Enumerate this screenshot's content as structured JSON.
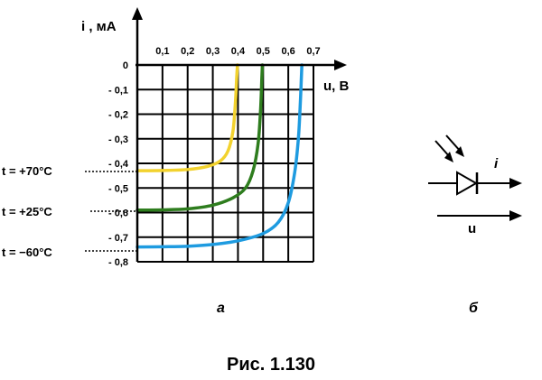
{
  "chart_data": {
    "type": "line",
    "y_axis_label": "i , мА",
    "x_axis_label": "u, В",
    "x_ticks": [
      "0,1",
      "0,2",
      "0,3",
      "0,4",
      "0,5",
      "0,6",
      "0,7"
    ],
    "y_ticks": [
      "0",
      "- 0,1",
      "- 0,2",
      "- 0,3",
      "- 0,4",
      "- 0,5",
      "- 0,6",
      "- 0,7",
      "- 0,8"
    ],
    "xlim": [
      0,
      0.7
    ],
    "ylim": [
      -0.8,
      0
    ],
    "grid": true,
    "series": [
      {
        "label": "t = +70°C",
        "color": "#f2d22e",
        "points": [
          [
            0,
            -0.43
          ],
          [
            0.1,
            -0.429
          ],
          [
            0.2,
            -0.425
          ],
          [
            0.28,
            -0.412
          ],
          [
            0.33,
            -0.39
          ],
          [
            0.36,
            -0.35
          ],
          [
            0.38,
            -0.27
          ],
          [
            0.39,
            -0.15
          ],
          [
            0.395,
            -0.05
          ],
          [
            0.398,
            0
          ]
        ]
      },
      {
        "label": "t = +25°C",
        "color": "#2e7d1e",
        "points": [
          [
            0,
            -0.59
          ],
          [
            0.1,
            -0.589
          ],
          [
            0.2,
            -0.585
          ],
          [
            0.3,
            -0.57
          ],
          [
            0.38,
            -0.54
          ],
          [
            0.43,
            -0.5
          ],
          [
            0.46,
            -0.43
          ],
          [
            0.48,
            -0.32
          ],
          [
            0.49,
            -0.18
          ],
          [
            0.495,
            -0.05
          ],
          [
            0.497,
            0
          ]
        ]
      },
      {
        "label": "t = -60°C",
        "color": "#1e9be0",
        "points": [
          [
            0,
            -0.74
          ],
          [
            0.1,
            -0.739
          ],
          [
            0.2,
            -0.737
          ],
          [
            0.3,
            -0.73
          ],
          [
            0.4,
            -0.715
          ],
          [
            0.5,
            -0.685
          ],
          [
            0.56,
            -0.64
          ],
          [
            0.6,
            -0.56
          ],
          [
            0.625,
            -0.44
          ],
          [
            0.64,
            -0.3
          ],
          [
            0.648,
            -0.15
          ],
          [
            0.652,
            -0.05
          ],
          [
            0.654,
            0
          ]
        ]
      }
    ]
  },
  "temperature_labels": {
    "t70": "t = +70°C",
    "t25": "t = +25°C",
    "tm60": "t = −60°C"
  },
  "diode": {
    "current_label": "i",
    "voltage_label": "u"
  },
  "sublabels": {
    "a": "а",
    "b": "б"
  },
  "caption": "Рис. 1.130"
}
